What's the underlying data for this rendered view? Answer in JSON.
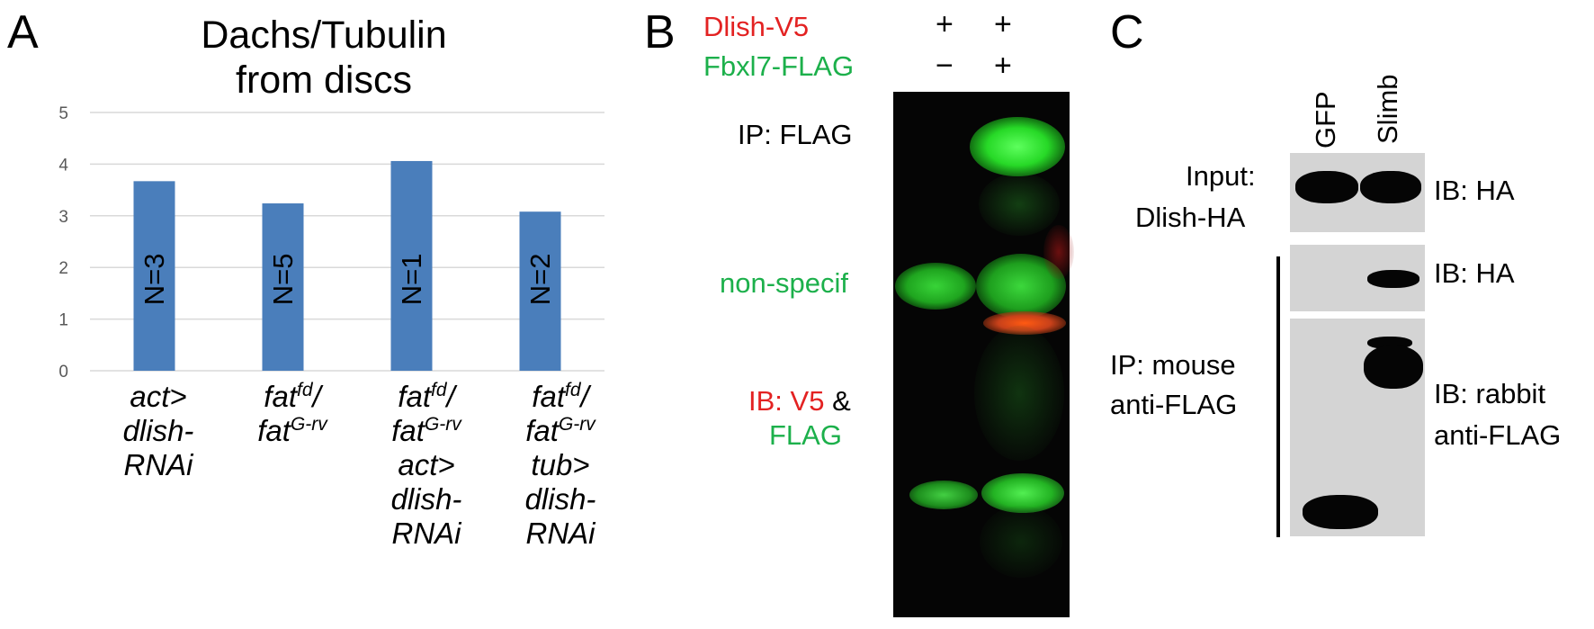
{
  "panels": {
    "a": {
      "letter": "A"
    },
    "b": {
      "letter": "B"
    },
    "c": {
      "letter": "C"
    }
  },
  "chart_data": {
    "type": "bar",
    "title": "Dachs/Tubulin from discs",
    "title_lines": [
      "Dachs/Tubulin",
      "from discs"
    ],
    "categories": [
      "act>dlish-RNAi",
      "fatfd/fatG-rv",
      "fatfd/fatG-rv act>dlish-RNAi",
      "fatfd/fatG-rv tub>dlish-RNAi"
    ],
    "values": [
      3.67,
      3.24,
      4.06,
      3.08
    ],
    "bar_labels": [
      "N=3",
      "N=5",
      "N=1",
      "N=2"
    ],
    "ylim": [
      0,
      5
    ],
    "yticks": [
      "0",
      "1",
      "2",
      "3",
      "4",
      "5"
    ],
    "grid": true,
    "bar_color": "#4a7ebb",
    "xlabel": "",
    "ylabel": ""
  },
  "panel_b": {
    "row1_label": "Dlish-V5",
    "row2_label": "Fbxl7-FLAG",
    "lane1": {
      "row1": "+",
      "row2": "−"
    },
    "lane2": {
      "row1": "+",
      "row2": "+"
    },
    "ip_label": "IP: FLAG",
    "nonspecific_label": "non-specif",
    "ib_prefix": "IB:",
    "ib_v5": "V5",
    "ib_amp": "&",
    "ib_flag": "FLAG",
    "colors": {
      "red": "#e32222",
      "green": "#1cb04b"
    }
  },
  "panel_c": {
    "lanes": [
      "GFP",
      "Slimb"
    ],
    "input_label_1": "Input:",
    "input_label_2": "Dlish-HA",
    "ip_label_1": "IP: mouse",
    "ip_label_2": "anti-FLAG",
    "ib_top": "IB: HA",
    "ib_middle": "IB: HA",
    "ib_bottom_1": "IB: rabbit",
    "ib_bottom_2": "anti-FLAG"
  }
}
